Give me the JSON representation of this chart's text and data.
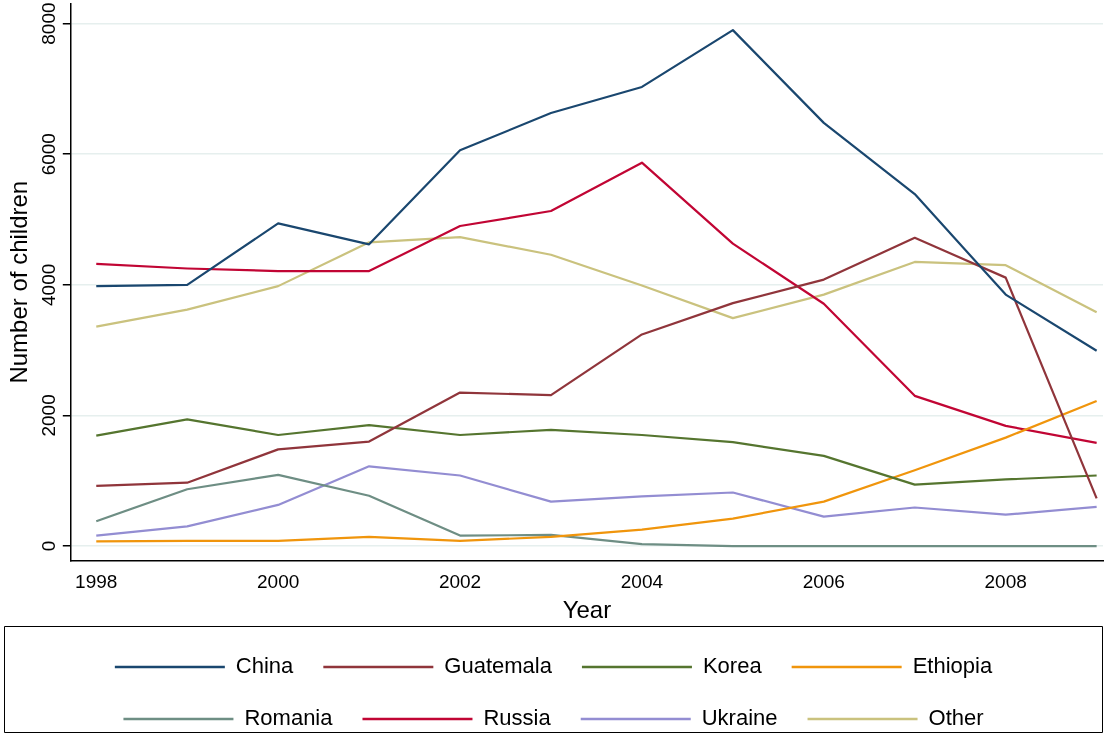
{
  "chart_data": {
    "type": "line",
    "xlabel": "Year",
    "ylabel": "Number of children",
    "x": [
      1998,
      1999,
      2000,
      2001,
      2002,
      2003,
      2004,
      2005,
      2006,
      2007,
      2008,
      2009
    ],
    "xlim": [
      1997.72,
      2009.07
    ],
    "xticks": [
      1998,
      2000,
      2002,
      2004,
      2006,
      2008
    ],
    "ylim": [
      -220,
      8300
    ],
    "yticks": [
      0,
      2000,
      4000,
      6000,
      8000
    ],
    "grid": "y",
    "legend": "bottom",
    "marker": "none",
    "line_style": "solid",
    "series": [
      {
        "name": "China",
        "color": "#1a476f",
        "values": [
          3980,
          4000,
          4940,
          4620,
          6060,
          6630,
          7030,
          7900,
          6480,
          5390,
          3850,
          2990
        ]
      },
      {
        "name": "Guatemala",
        "color": "#90353b",
        "values": [
          920,
          970,
          1480,
          1600,
          2350,
          2310,
          3240,
          3720,
          4080,
          4720,
          4110,
          730
        ]
      },
      {
        "name": "Korea",
        "color": "#55752f",
        "values": [
          1690,
          1940,
          1700,
          1850,
          1700,
          1780,
          1700,
          1590,
          1380,
          940,
          1020,
          1080
        ]
      },
      {
        "name": "Ethiopia",
        "color": "#f0950c",
        "values": [
          70,
          80,
          80,
          140,
          80,
          140,
          250,
          420,
          680,
          1160,
          1660,
          2220
        ]
      },
      {
        "name": "Romania",
        "color": "#6e8e84",
        "values": [
          380,
          870,
          1090,
          770,
          160,
          170,
          30,
          0,
          0,
          0,
          0,
          0
        ]
      },
      {
        "name": "Russia",
        "color": "#c10534",
        "values": [
          4320,
          4250,
          4210,
          4210,
          4900,
          5130,
          5870,
          4630,
          3710,
          2300,
          1840,
          1580
        ]
      },
      {
        "name": "Ukraine",
        "color": "#938dd2",
        "values": [
          160,
          300,
          630,
          1220,
          1080,
          680,
          760,
          820,
          450,
          590,
          480,
          600
        ]
      },
      {
        "name": "Other",
        "color": "#cac27e",
        "values": [
          3360,
          3620,
          3980,
          4650,
          4730,
          4460,
          3990,
          3490,
          3850,
          4350,
          4300,
          3580
        ]
      }
    ]
  }
}
